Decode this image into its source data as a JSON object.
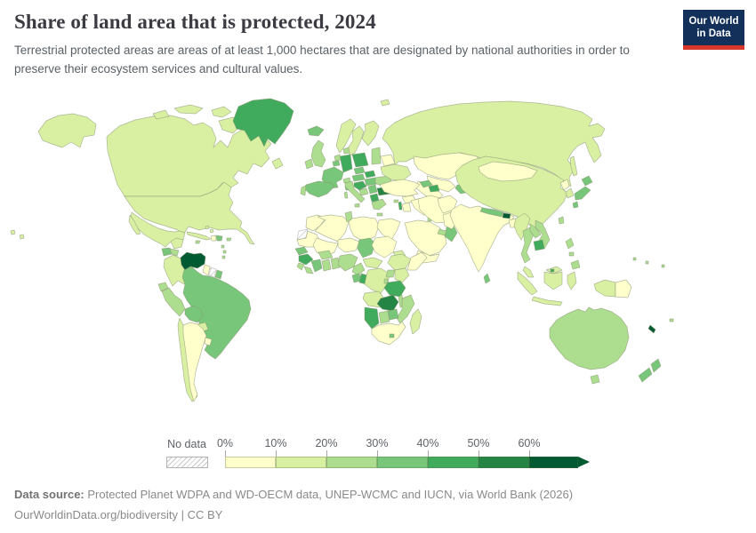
{
  "header": {
    "title": "Share of land area that is protected, 2024",
    "subtitle": "Terrestrial protected areas are areas of at least 1,000 hectares that are designated by national authorities in order to preserve their ecosystem services and cultural values.",
    "logo": {
      "line1": "Our World",
      "line2": "in Data",
      "bg_color": "#12305a",
      "accent_color": "#d7362b"
    }
  },
  "legend": {
    "no_data_label": "No data",
    "tick_labels": [
      "0%",
      "10%",
      "20%",
      "30%",
      "40%",
      "50%",
      "60%"
    ]
  },
  "footer": {
    "source_label": "Data source:",
    "source_text": " Protected Planet WDPA and WD-OECM data, UNEP-WCMC and IUCN, via World Bank (2026)",
    "attribution": "OurWorldinData.org/biodiversity | CC BY"
  },
  "chart_data": {
    "type": "choropleth",
    "title": "Share of land area that is protected",
    "year": 2024,
    "unit": "% of land area protected",
    "projection": "world",
    "legend_position": "bottom",
    "bin_colors": {
      "0-10%": "#ffffcc",
      "10-20%": "#d9f0a3",
      "20-30%": "#addd8e",
      "30-40%": "#78c679",
      "40-50%": "#41ab5d",
      "50-60%": "#238443",
      "60%+": "#005a32",
      "no-data": "hatch"
    },
    "bins": [
      {
        "range": "0-10%",
        "color": "#ffffcc"
      },
      {
        "range": "10-20%",
        "color": "#d9f0a3"
      },
      {
        "range": "20-30%",
        "color": "#addd8e"
      },
      {
        "range": "30-40%",
        "color": "#78c679"
      },
      {
        "range": "40-50%",
        "color": "#41ab5d"
      },
      {
        "range": "50-60%",
        "color": "#238443"
      },
      {
        "range": "60%+",
        "color": "#005a32"
      },
      {
        "range": "No data",
        "color": "hatch"
      }
    ],
    "regions": {
      "canada": {
        "label": "Canada",
        "bin": "10-20%"
      },
      "usa": {
        "label": "United States",
        "bin": "10-20%"
      },
      "greenland": {
        "label": "Greenland",
        "bin": "40-50%"
      },
      "mexico": {
        "label": "Mexico",
        "bin": "10-20%"
      },
      "guatemala": {
        "label": "Guatemala",
        "bin": "30-40%"
      },
      "honduras": {
        "label": "Honduras",
        "bin": "20-30%"
      },
      "nicaragua": {
        "label": "Nicaragua",
        "bin": "20-30%"
      },
      "costa-rica": {
        "label": "Costa Rica",
        "bin": "30-40%"
      },
      "panama": {
        "label": "Panama",
        "bin": "30-40%"
      },
      "cuba": {
        "label": "Cuba",
        "bin": "10-20%"
      },
      "haiti": {
        "label": "Haiti",
        "bin": "0-10%"
      },
      "dominican-republic": {
        "label": "Dominican Republic",
        "bin": "30-40%"
      },
      "jamaica": {
        "label": "Jamaica",
        "bin": "20-30%"
      },
      "puerto-rico": {
        "label": "Puerto Rico",
        "bin": "20-30%"
      },
      "bahamas": {
        "label": "Bahamas",
        "bin": "10-20%"
      },
      "trinidad-and-tobago": {
        "label": "Trinidad and Tobago",
        "bin": "10-20%"
      },
      "lesser-antilles": {
        "label": "Lesser Antilles",
        "bin": "20-30%"
      },
      "venezuela": {
        "label": "Venezuela",
        "bin": "60%+"
      },
      "colombia": {
        "label": "Colombia",
        "bin": "10-20%"
      },
      "guyana": {
        "label": "Guyana",
        "bin": "0-10%"
      },
      "suriname": {
        "label": "Suriname",
        "bin": "no-data"
      },
      "french-guiana": {
        "label": "French Guiana",
        "bin": "30-40%"
      },
      "ecuador": {
        "label": "Ecuador",
        "bin": "20-30%"
      },
      "peru": {
        "label": "Peru",
        "bin": "20-30%"
      },
      "brazil": {
        "label": "Brazil",
        "bin": "30-40%"
      },
      "bolivia": {
        "label": "Bolivia",
        "bin": "30-40%"
      },
      "paraguay": {
        "label": "Paraguay",
        "bin": "10-20%"
      },
      "chile": {
        "label": "Chile",
        "bin": "10-20%"
      },
      "argentina": {
        "label": "Argentina",
        "bin": "0-10%"
      },
      "uruguay": {
        "label": "Uruguay",
        "bin": "0-10%"
      },
      "iceland": {
        "label": "Iceland",
        "bin": "30-40%"
      },
      "united-kingdom": {
        "label": "United Kingdom",
        "bin": "20-30%"
      },
      "ireland": {
        "label": "Ireland",
        "bin": "20-30%"
      },
      "norway": {
        "label": "Norway",
        "bin": "10-20%"
      },
      "sweden": {
        "label": "Sweden",
        "bin": "10-20%"
      },
      "finland": {
        "label": "Finland",
        "bin": "10-20%"
      },
      "denmark": {
        "label": "Denmark",
        "bin": "20-30%"
      },
      "baltic-states": {
        "label": "Baltic states",
        "bin": "20-30%"
      },
      "belarus": {
        "label": "Belarus",
        "bin": "0-10%"
      },
      "poland": {
        "label": "Poland",
        "bin": "40-50%"
      },
      "germany": {
        "label": "Germany",
        "bin": "40-50%"
      },
      "netherlands": {
        "label": "Netherlands",
        "bin": "20-30%"
      },
      "belgium": {
        "label": "Belgium",
        "bin": "30-40%"
      },
      "france": {
        "label": "France",
        "bin": "30-40%"
      },
      "switzerland": {
        "label": "Switzerland",
        "bin": "20-30%"
      },
      "czechia": {
        "label": "Czechia",
        "bin": "30-40%"
      },
      "slovakia": {
        "label": "Slovakia",
        "bin": "40-50%"
      },
      "austria": {
        "label": "Austria",
        "bin": "30-40%"
      },
      "hungary": {
        "label": "Hungary",
        "bin": "30-40%"
      },
      "spain": {
        "label": "Spain",
        "bin": "30-40%"
      },
      "portugal": {
        "label": "Portugal",
        "bin": "20-30%"
      },
      "italy": {
        "label": "Italy",
        "bin": "20-30%"
      },
      "croatia-slovenia": {
        "label": "Croatia and Slovenia",
        "bin": "40-50%"
      },
      "bosnia": {
        "label": "Bosnia and Herzegovina",
        "bin": "20-30%"
      },
      "serbia": {
        "label": "Serbia",
        "bin": "30-40%"
      },
      "romania": {
        "label": "Romania",
        "bin": "20-30%"
      },
      "bulgaria": {
        "label": "Bulgaria",
        "bin": "50-60%"
      },
      "albania-macedonia": {
        "label": "Albania and North Macedonia",
        "bin": "40-50%"
      },
      "greece": {
        "label": "Greece",
        "bin": "20-30%"
      },
      "ukraine": {
        "label": "Ukraine",
        "bin": "10-20%"
      },
      "russia": {
        "label": "Russia",
        "bin": "10-20%"
      },
      "svalbard": {
        "label": "Svalbard",
        "bin": "10-20%"
      },
      "kazakhstan": {
        "label": "Kazakhstan",
        "bin": "0-10%"
      },
      "uzbekistan": {
        "label": "Uzbekistan",
        "bin": "0-10%"
      },
      "turkmenistan": {
        "label": "Turkmenistan",
        "bin": "0-10%"
      },
      "kyrgyzstan": {
        "label": "Kyrgyzstan",
        "bin": "20-30%"
      },
      "tajikistan": {
        "label": "Tajikistan",
        "bin": "30-40%"
      },
      "georgia": {
        "label": "Georgia",
        "bin": "30-40%"
      },
      "azerbaijan": {
        "label": "Azerbaijan",
        "bin": "40-50%"
      },
      "turkey": {
        "label": "Turkey",
        "bin": "0-10%"
      },
      "cyprus": {
        "label": "Cyprus",
        "bin": "20-30%"
      },
      "syria": {
        "label": "Syria",
        "bin": "0-10%"
      },
      "israel": {
        "label": "Israel",
        "bin": "40-50%"
      },
      "jordan": {
        "label": "Jordan",
        "bin": "0-10%"
      },
      "iraq": {
        "label": "Iraq",
        "bin": "0-10%"
      },
      "saudi-arabia": {
        "label": "Saudi Arabia",
        "bin": "0-10%"
      },
      "yemen": {
        "label": "Yemen",
        "bin": "0-10%"
      },
      "oman": {
        "label": "Oman",
        "bin": "30-40%"
      },
      "uae": {
        "label": "United Arab Emirates",
        "bin": "20-30%"
      },
      "kuwait": {
        "label": "Kuwait",
        "bin": "20-30%"
      },
      "iran": {
        "label": "Iran",
        "bin": "0-10%"
      },
      "afghanistan": {
        "label": "Afghanistan",
        "bin": "0-10%"
      },
      "pakistan": {
        "label": "Pakistan",
        "bin": "0-10%"
      },
      "morocco": {
        "label": "Morocco",
        "bin": "0-10%"
      },
      "western-sahara": {
        "label": "Western Sahara",
        "bin": "no-data"
      },
      "algeria": {
        "label": "Algeria",
        "bin": "0-10%"
      },
      "tunisia": {
        "label": "Tunisia",
        "bin": "20-30%"
      },
      "libya": {
        "label": "Libya",
        "bin": "0-10%"
      },
      "egypt": {
        "label": "Egypt",
        "bin": "0-10%"
      },
      "mauritania": {
        "label": "Mauritania",
        "bin": "0-10%"
      },
      "mali": {
        "label": "Mali",
        "bin": "0-10%"
      },
      "niger": {
        "label": "Niger",
        "bin": "0-10%"
      },
      "chad": {
        "label": "Chad",
        "bin": "30-40%"
      },
      "sudan": {
        "label": "Sudan",
        "bin": "0-10%"
      },
      "eritrea": {
        "label": "Eritrea",
        "bin": "10-20%"
      },
      "senegal": {
        "label": "Senegal",
        "bin": "30-40%"
      },
      "guinea": {
        "label": "Guinea",
        "bin": "40-50%"
      },
      "sierra-leone": {
        "label": "Sierra Leone",
        "bin": "20-30%"
      },
      "liberia": {
        "label": "Liberia",
        "bin": "20-30%"
      },
      "ivory-coast": {
        "label": "Cote d'Ivoire",
        "bin": "30-40%"
      },
      "ghana": {
        "label": "Ghana",
        "bin": "20-30%"
      },
      "benin-togo": {
        "label": "Benin and Togo",
        "bin": "20-30%"
      },
      "burkina-faso": {
        "label": "Burkina Faso",
        "bin": "20-30%"
      },
      "nigeria": {
        "label": "Nigeria",
        "bin": "20-30%"
      },
      "cameroon": {
        "label": "Cameroon",
        "bin": "20-30%"
      },
      "central-african-republic": {
        "label": "Central African Republic",
        "bin": "10-20%"
      },
      "ethiopia": {
        "label": "Ethiopia",
        "bin": "10-20%"
      },
      "somalia": {
        "label": "Somalia",
        "bin": "0-10%"
      },
      "kenya": {
        "label": "Kenya",
        "bin": "10-20%"
      },
      "uganda": {
        "label": "Uganda",
        "bin": "20-30%"
      },
      "rwanda-burundi": {
        "label": "Rwanda and Burundi",
        "bin": "20-30%"
      },
      "gabon": {
        "label": "Gabon",
        "bin": "30-40%"
      },
      "republic-of-congo": {
        "label": "Republic of Congo",
        "bin": "40-50%"
      },
      "drc": {
        "label": "Democratic Republic of Congo",
        "bin": "10-20%"
      },
      "tanzania": {
        "label": "Tanzania",
        "bin": "40-50%"
      },
      "angola": {
        "label": "Angola",
        "bin": "10-20%"
      },
      "zambia": {
        "label": "Zambia",
        "bin": "50-60%"
      },
      "malawi": {
        "label": "Malawi",
        "bin": "20-30%"
      },
      "mozambique": {
        "label": "Mozambique",
        "bin": "20-30%"
      },
      "zimbabwe": {
        "label": "Zimbabwe",
        "bin": "30-40%"
      },
      "botswana": {
        "label": "Botswana",
        "bin": "20-30%"
      },
      "namibia": {
        "label": "Namibia",
        "bin": "40-50%"
      },
      "south-africa": {
        "label": "South Africa",
        "bin": "0-10%"
      },
      "lesotho": {
        "label": "Lesotho",
        "bin": "30-40%"
      },
      "madagascar": {
        "label": "Madagascar",
        "bin": "10-20%"
      },
      "india": {
        "label": "India",
        "bin": "0-10%"
      },
      "nepal": {
        "label": "Nepal",
        "bin": "30-40%"
      },
      "bhutan": {
        "label": "Bhutan",
        "bin": "60%+"
      },
      "bangladesh": {
        "label": "Bangladesh",
        "bin": "0-10%"
      },
      "sri-lanka": {
        "label": "Sri Lanka",
        "bin": "30-40%"
      },
      "myanmar": {
        "label": "Myanmar",
        "bin": "10-20%"
      },
      "china": {
        "label": "China",
        "bin": "10-20%"
      },
      "mongolia": {
        "label": "Mongolia",
        "bin": "0-10%"
      },
      "north-korea": {
        "label": "North Korea",
        "bin": "0-10%"
      },
      "south-korea": {
        "label": "South Korea",
        "bin": "10-20%"
      },
      "japan": {
        "label": "Japan",
        "bin": "30-40%"
      },
      "taiwan": {
        "label": "Taiwan",
        "bin": "20-30%"
      },
      "thailand": {
        "label": "Thailand",
        "bin": "20-30%"
      },
      "laos": {
        "label": "Laos",
        "bin": "20-30%"
      },
      "vietnam": {
        "label": "Vietnam",
        "bin": "20-30%"
      },
      "cambodia": {
        "label": "Cambodia",
        "bin": "40-50%"
      },
      "malaysia": {
        "label": "Malaysia",
        "bin": "10-20%"
      },
      "brunei": {
        "label": "Brunei",
        "bin": "40-50%"
      },
      "philippines": {
        "label": "Philippines",
        "bin": "20-30%"
      },
      "indonesia": {
        "label": "Indonesia",
        "bin": "10-20%"
      },
      "papua-new-guinea": {
        "label": "Papua New Guinea",
        "bin": "0-10%"
      },
      "australia": {
        "label": "Australia",
        "bin": "20-30%"
      },
      "new-zealand": {
        "label": "New Zealand",
        "bin": "30-40%"
      },
      "new-caledonia": {
        "label": "New Caledonia",
        "bin": "60%+"
      },
      "fiji": {
        "label": "Fiji",
        "bin": "20-30%"
      },
      "pacific-islands": {
        "label": "Pacific islands",
        "bin": "20-30%"
      }
    }
  }
}
